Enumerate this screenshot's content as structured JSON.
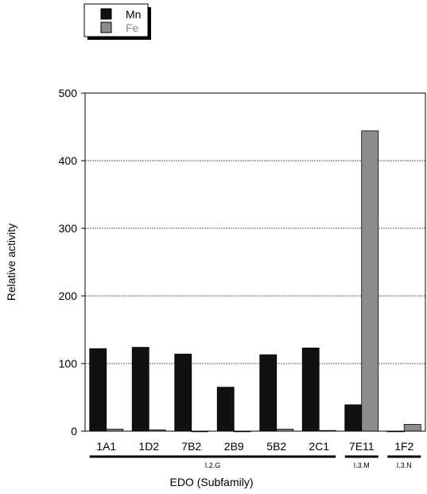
{
  "chart_data": {
    "type": "bar",
    "title": "",
    "xlabel": "EDO (Subfamily)",
    "ylabel": "Relative activity",
    "ylim": [
      0,
      500
    ],
    "yticks": [
      0,
      100,
      200,
      300,
      400,
      500
    ],
    "grid": true,
    "legend_position": "top-left",
    "categories": [
      "1A1",
      "1D2",
      "7B2",
      "2B9",
      "5B2",
      "2C1",
      "7E11",
      "1F2"
    ],
    "series": [
      {
        "name": "Mn",
        "color": "#111111",
        "values": [
          122,
          124,
          114,
          65,
          113,
          123,
          39,
          0
        ]
      },
      {
        "name": "Fe",
        "color": "#8c8c8c",
        "values": [
          3,
          2,
          0,
          0,
          3,
          1,
          444,
          10
        ]
      }
    ],
    "groups": [
      {
        "label": "I.2.G",
        "from": 0,
        "to": 5
      },
      {
        "label": "I.3.M",
        "from": 6,
        "to": 6
      },
      {
        "label": "I.3.N",
        "from": 7,
        "to": 7
      }
    ]
  }
}
